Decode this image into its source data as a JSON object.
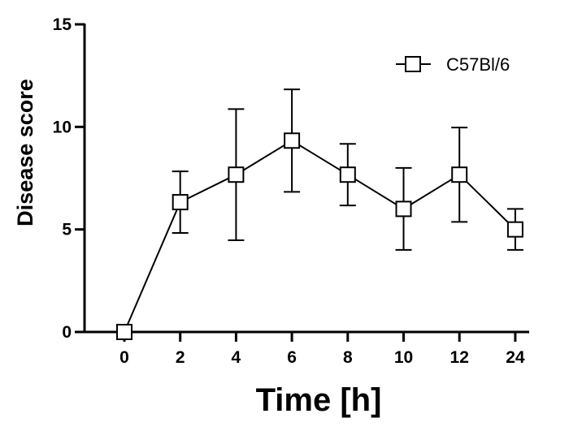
{
  "chart_data": {
    "type": "line",
    "title": "",
    "xlabel": "Time [h]",
    "ylabel": "Disease score",
    "categories": [
      "0",
      "2",
      "4",
      "6",
      "8",
      "10",
      "12",
      "24"
    ],
    "ylim": [
      0,
      15
    ],
    "yticks": [
      0,
      5,
      10,
      15
    ],
    "grid": false,
    "legend_position": "top-right",
    "series": [
      {
        "name": "C57Bl/6",
        "marker": "open-square",
        "values": [
          0,
          6.33,
          7.67,
          9.33,
          7.67,
          6.0,
          7.67,
          5.0
        ],
        "error_upper": [
          0,
          7.83,
          10.87,
          11.83,
          9.17,
          8.0,
          9.97,
          6.0
        ],
        "error_lower": [
          0,
          4.83,
          4.47,
          6.83,
          6.17,
          4.0,
          5.37,
          4.0
        ]
      }
    ]
  }
}
